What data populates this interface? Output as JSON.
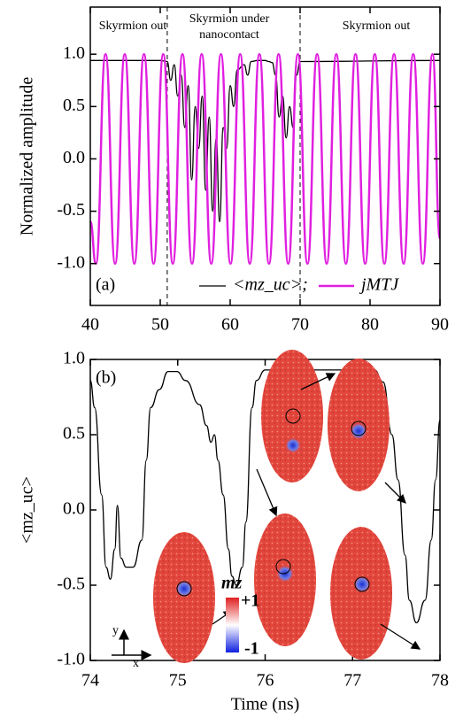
{
  "chart_data": [
    {
      "type": "line",
      "panel_label": "(a)",
      "ylabel": "Normalized amplitude",
      "xlim": [
        40,
        90
      ],
      "xticks": [
        40,
        50,
        60,
        70,
        80,
        90
      ],
      "ylim": [
        -1.4,
        1.45
      ],
      "yticks": [
        {
          "value": -1,
          "label": "-1.0"
        },
        {
          "value": -0.5,
          "label": "-0.5"
        },
        {
          "value": 0,
          "label": "0.0"
        },
        {
          "value": 0.5,
          "label": "0.5"
        },
        {
          "value": 1,
          "label": "1.0"
        }
      ],
      "vlines": [
        51,
        70
      ],
      "annotations": [
        "Skyrmion out",
        "Skyrmion under",
        "nanocontact",
        "Skyrmion out"
      ],
      "legend": "lower center",
      "series": [
        {
          "name": "<mz_uc>;",
          "color": "#000000",
          "x": [
            40,
            50,
            51,
            51.5,
            52,
            52.5,
            53,
            53.5,
            54,
            54.5,
            55,
            55.5,
            56,
            56.5,
            57,
            57.5,
            58,
            58.5,
            59,
            59.5,
            60,
            60.5,
            61,
            62,
            62.5,
            63,
            64,
            65,
            65.5,
            66,
            66.5,
            67,
            67.5,
            68,
            68.5,
            69,
            69.5,
            70,
            90
          ],
          "values": [
            0.94,
            0.94,
            0.93,
            0.75,
            0.9,
            0.6,
            0.8,
            0.3,
            0.7,
            -0.2,
            0.5,
            0.1,
            0.6,
            -0.3,
            0.4,
            -0.5,
            0.2,
            -0.6,
            0.3,
            0.1,
            0.7,
            0.5,
            0.85,
            0.9,
            0.8,
            0.93,
            0.94,
            0.94,
            0.93,
            0.92,
            0.8,
            0.4,
            0.6,
            0.2,
            0.5,
            0.3,
            0.8,
            0.93,
            0.94
          ]
        },
        {
          "name": "jMTJ",
          "color": "#e020e0",
          "x": [
            40,
            40.8,
            42.18,
            43.55,
            44.93,
            46.3,
            47.68,
            49.05,
            50.43,
            51.8,
            53.18,
            54.55,
            55.93,
            57.3,
            58.68,
            60.05,
            61.43,
            62.8,
            64.18,
            65.55,
            66.93,
            68.3,
            69.68,
            71.05,
            72.43,
            73.8,
            75.18,
            76.55,
            77.93,
            79.3,
            80.68,
            82.05,
            83.43,
            84.8,
            86.18,
            87.55,
            88.93,
            90
          ],
          "values": [
            -0.6,
            -1,
            1,
            -1,
            1,
            -1,
            1,
            -1,
            1,
            -1,
            1,
            -1,
            1,
            -1,
            1,
            -1,
            1,
            -1,
            1,
            -1,
            1,
            -1,
            1,
            -1,
            1,
            -1,
            1,
            -1,
            1,
            -1,
            1,
            -1,
            1,
            -1,
            1,
            -1,
            1,
            -0.76
          ]
        }
      ]
    },
    {
      "type": "line",
      "panel_label": "(b)",
      "xlabel": "Time (ns)",
      "ylabel": "<mz_uc>",
      "xlim": [
        74,
        78
      ],
      "xticks": [
        74,
        75,
        76,
        77,
        78
      ],
      "ylim": [
        -1,
        1
      ],
      "yticks": [
        {
          "value": -1,
          "label": "-1.0"
        },
        {
          "value": -0.5,
          "label": "-0.5"
        },
        {
          "value": 0,
          "label": "0.0"
        },
        {
          "value": 0.5,
          "label": "0.5"
        },
        {
          "value": 1,
          "label": "1.0"
        }
      ],
      "colorbar_title": "mz",
      "colorbar_labels": [
        "+1",
        "-1"
      ],
      "axis_glyph": [
        "y",
        "x"
      ],
      "series": [
        {
          "color": "#000000",
          "x": [
            74,
            74.05,
            74.13,
            74.18,
            74.23,
            74.28,
            74.31,
            74.35,
            74.41,
            74.49,
            74.59,
            74.64,
            74.69,
            74.79,
            74.89,
            74.99,
            75.09,
            75.25,
            75.33,
            75.38,
            75.42,
            75.46,
            75.52,
            75.58,
            75.62,
            75.67,
            75.74,
            75.78,
            75.85,
            75.9,
            76,
            77,
            77.25,
            77.35,
            77.45,
            77.52,
            77.6,
            77.65,
            77.73,
            77.83,
            77.9,
            77.95,
            78
          ],
          "values": [
            0.86,
            0.68,
            0.1,
            -0.38,
            -0.46,
            -0.26,
            0.03,
            -0.32,
            -0.38,
            -0.38,
            -0.2,
            0.33,
            0.68,
            0.8,
            0.92,
            0.92,
            0.86,
            0.7,
            0.56,
            0.45,
            0.5,
            0.33,
            0.1,
            -0.26,
            -0.44,
            -0.5,
            -0.38,
            -0.08,
            0.68,
            0.86,
            0.93,
            0.93,
            0.93,
            0.85,
            0.5,
            0.2,
            -0.3,
            -0.6,
            -0.75,
            -0.6,
            -0.2,
            0.2,
            0.6
          ]
        }
      ]
    }
  ]
}
